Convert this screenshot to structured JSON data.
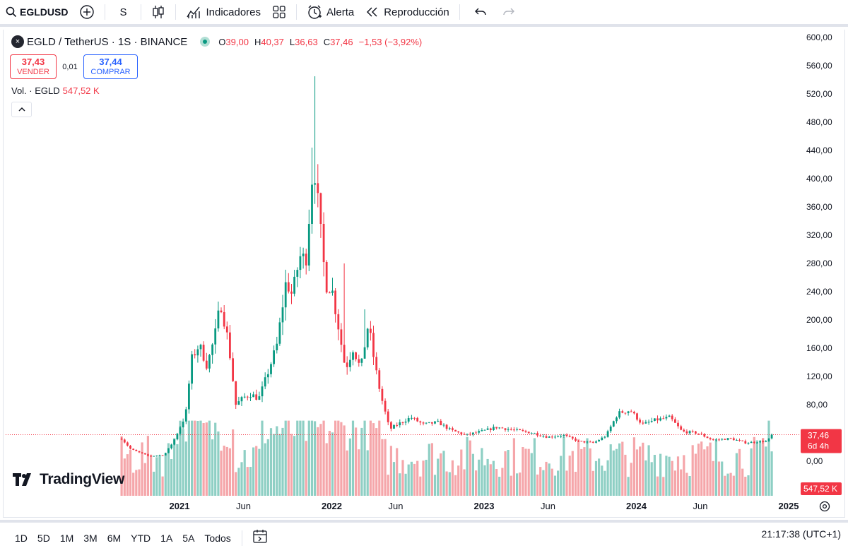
{
  "toolbar": {
    "symbol": "EGLDUSD",
    "interval": "S",
    "indicators_label": "Indicadores",
    "alert_label": "Alerta",
    "replay_label": "Reproducción"
  },
  "legend": {
    "coin_glyph": "×",
    "title": "EGLD / TetherUS · 1S · BINANCE",
    "ohlc": {
      "o_key": "O",
      "o": "39,00",
      "h_key": "H",
      "h": "40,37",
      "l_key": "L",
      "l": "36,63",
      "c_key": "C",
      "c": "37,46",
      "change": "−1,53 (−3,92%)"
    }
  },
  "trade": {
    "sell_price": "37,43",
    "sell_label": "VENDER",
    "spread": "0,01",
    "buy_price": "37,44",
    "buy_label": "COMPRAR"
  },
  "volume_legend": {
    "label": "Vol. · EGLD",
    "value": "547,52 K"
  },
  "logo_text": "TradingView",
  "price_badge": {
    "price": "37,46",
    "countdown": "6d 4h"
  },
  "volume_badge": "547,52 K",
  "bottom": {
    "ranges": [
      "1D",
      "5D",
      "1M",
      "3M",
      "6M",
      "YTD",
      "1A",
      "5A",
      "Todos"
    ],
    "clock": "21:17:38 (UTC+1)"
  },
  "colors": {
    "up": "#089981",
    "down": "#f23645",
    "up_volume": "#8ecfc4",
    "down_volume": "#f5a6aa"
  },
  "chart_data": {
    "type": "candlestick",
    "title": "EGLD / TetherUS · 1S · BINANCE",
    "interval": "1 week",
    "y_axis": {
      "min": -10,
      "max": 602,
      "ticks": [
        0,
        40,
        80,
        120,
        160,
        200,
        240,
        280,
        320,
        360,
        400,
        440,
        480,
        520,
        560,
        600
      ],
      "tick_labels": [
        "0,00",
        "",
        "80,00",
        "120,00",
        "160,00",
        "200,00",
        "240,00",
        "280,00",
        "320,00",
        "360,00",
        "400,00",
        "440,00",
        "480,00",
        "520,00",
        "560,00",
        "600,00"
      ]
    },
    "x_axis": {
      "labels": [
        {
          "t": 2021.0,
          "label": "2021",
          "bold": true
        },
        {
          "t": 2021.42,
          "label": "Jun",
          "bold": false
        },
        {
          "t": 2022.0,
          "label": "2022",
          "bold": true
        },
        {
          "t": 2022.42,
          "label": "Jun",
          "bold": false
        },
        {
          "t": 2023.0,
          "label": "2023",
          "bold": true
        },
        {
          "t": 2023.42,
          "label": "Jun",
          "bold": false
        },
        {
          "t": 2024.0,
          "label": "2024",
          "bold": true
        },
        {
          "t": 2024.42,
          "label": "Jun",
          "bold": false
        },
        {
          "t": 2025.0,
          "label": "2025",
          "bold": true
        }
      ]
    },
    "last_price": 37.46,
    "anchors": [
      {
        "t": 2020.62,
        "p": 32
      },
      {
        "t": 2020.68,
        "p": 17
      },
      {
        "t": 2020.8,
        "p": 7
      },
      {
        "t": 2020.9,
        "p": 9
      },
      {
        "t": 2020.96,
        "p": 28
      },
      {
        "t": 2021.04,
        "p": 65
      },
      {
        "t": 2021.08,
        "p": 145
      },
      {
        "t": 2021.13,
        "p": 165
      },
      {
        "t": 2021.18,
        "p": 135
      },
      {
        "t": 2021.23,
        "p": 175
      },
      {
        "t": 2021.27,
        "p": 225
      },
      {
        "t": 2021.32,
        "p": 170
      },
      {
        "t": 2021.37,
        "p": 80
      },
      {
        "t": 2021.42,
        "p": 90
      },
      {
        "t": 2021.47,
        "p": 95
      },
      {
        "t": 2021.52,
        "p": 88
      },
      {
        "t": 2021.58,
        "p": 125
      },
      {
        "t": 2021.64,
        "p": 165
      },
      {
        "t": 2021.7,
        "p": 255
      },
      {
        "t": 2021.74,
        "p": 235
      },
      {
        "t": 2021.79,
        "p": 290
      },
      {
        "t": 2021.83,
        "p": 285
      },
      {
        "t": 2021.88,
        "p": 430
      },
      {
        "t": 2021.92,
        "p": 340
      },
      {
        "t": 2021.96,
        "p": 250
      },
      {
        "t": 2022.0,
        "p": 245
      },
      {
        "t": 2022.04,
        "p": 195
      },
      {
        "t": 2022.09,
        "p": 130
      },
      {
        "t": 2022.14,
        "p": 160
      },
      {
        "t": 2022.19,
        "p": 130
      },
      {
        "t": 2022.24,
        "p": 195
      },
      {
        "t": 2022.28,
        "p": 140
      },
      {
        "t": 2022.32,
        "p": 95
      },
      {
        "t": 2022.38,
        "p": 45
      },
      {
        "t": 2022.43,
        "p": 52
      },
      {
        "t": 2022.52,
        "p": 62
      },
      {
        "t": 2022.6,
        "p": 52
      },
      {
        "t": 2022.7,
        "p": 55
      },
      {
        "t": 2022.78,
        "p": 44
      },
      {
        "t": 2022.88,
        "p": 37
      },
      {
        "t": 2022.98,
        "p": 42
      },
      {
        "t": 2023.08,
        "p": 48
      },
      {
        "t": 2023.2,
        "p": 44
      },
      {
        "t": 2023.32,
        "p": 40
      },
      {
        "t": 2023.42,
        "p": 34
      },
      {
        "t": 2023.52,
        "p": 37
      },
      {
        "t": 2023.62,
        "p": 28
      },
      {
        "t": 2023.72,
        "p": 26
      },
      {
        "t": 2023.8,
        "p": 36
      },
      {
        "t": 2023.88,
        "p": 68
      },
      {
        "t": 2023.96,
        "p": 72
      },
      {
        "t": 2024.04,
        "p": 52
      },
      {
        "t": 2024.12,
        "p": 58
      },
      {
        "t": 2024.22,
        "p": 62
      },
      {
        "t": 2024.3,
        "p": 42
      },
      {
        "t": 2024.4,
        "p": 40
      },
      {
        "t": 2024.5,
        "p": 30
      },
      {
        "t": 2024.62,
        "p": 32
      },
      {
        "t": 2024.72,
        "p": 26
      },
      {
        "t": 2024.82,
        "p": 28
      },
      {
        "t": 2024.86,
        "p": 28
      },
      {
        "t": 2024.89,
        "p": 37.46
      }
    ],
    "volume_label": "Vol. · EGLD",
    "last_volume": "547,52 K"
  }
}
